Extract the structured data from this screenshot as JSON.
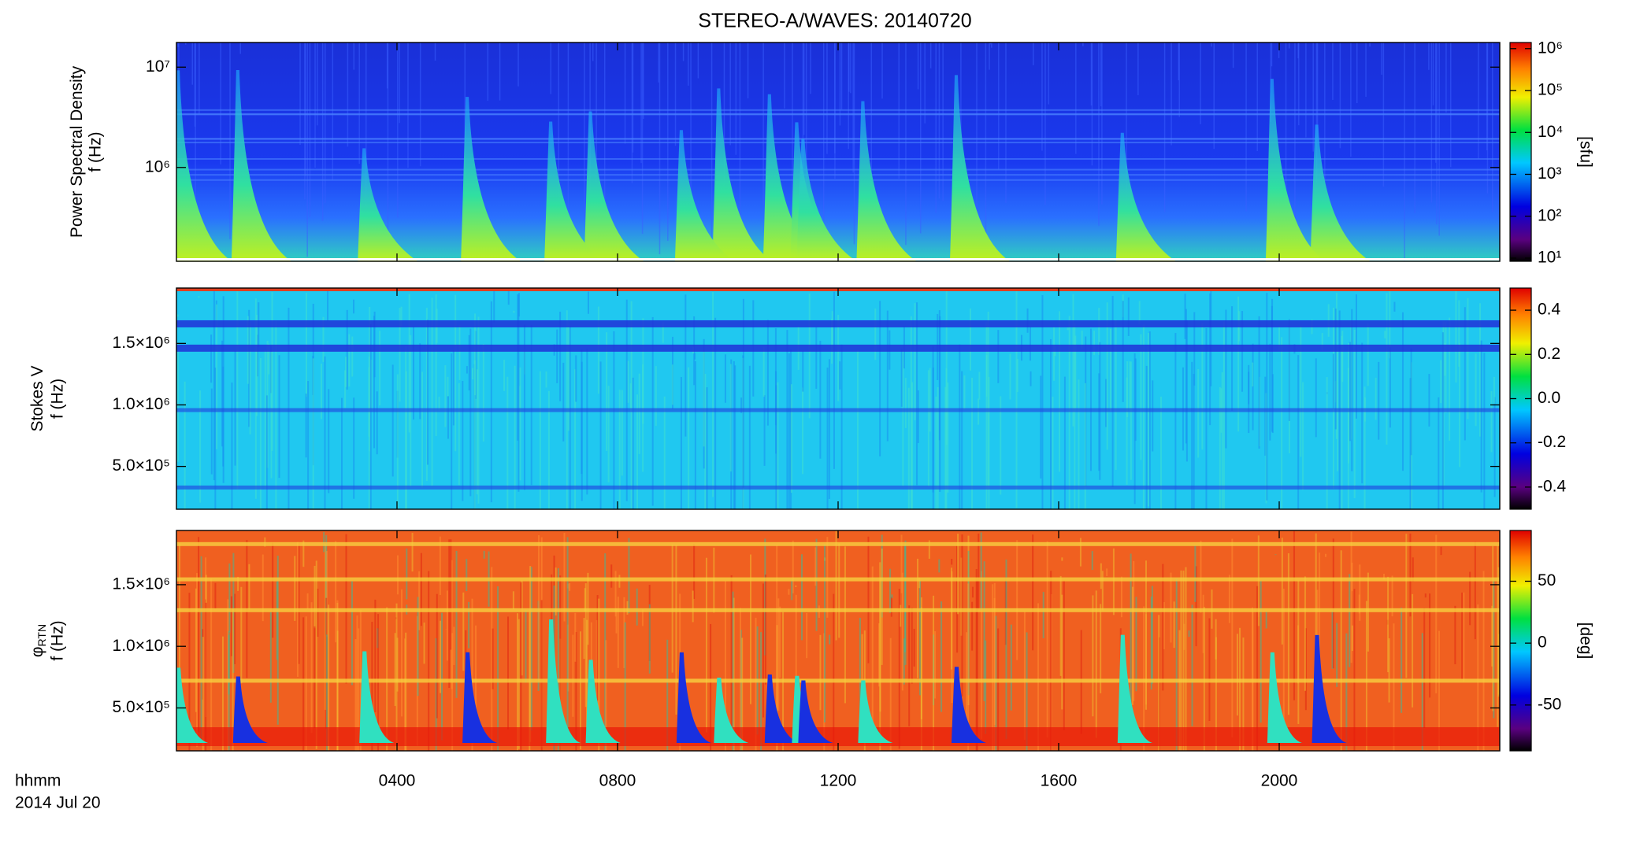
{
  "title": "STEREO-A/WAVES: 20140720",
  "chart_data": [
    {
      "type": "spectrogram",
      "ylabel": "Power Spectral Density",
      "ylabel2": "f (Hz)",
      "yscale": "log",
      "ylim": [
        116000,
        17600000
      ],
      "yticks": [
        {
          "value": 1000000,
          "label": "10⁶"
        },
        {
          "value": 10000000,
          "label": "10⁷"
        }
      ],
      "zscale": "log",
      "zlim": [
        8.4,
        1400000
      ],
      "zlabel": "[sfu]",
      "zticks": [
        {
          "value": 10,
          "label": "10¹"
        },
        {
          "value": 100,
          "label": "10²"
        },
        {
          "value": 1000,
          "label": "10³"
        },
        {
          "value": 10000,
          "label": "10⁴"
        },
        {
          "value": 100000,
          "label": "10⁵"
        },
        {
          "value": 1000000,
          "label": "10⁶"
        }
      ]
    },
    {
      "type": "spectrogram",
      "ylabel": "Stokes V",
      "ylabel2": "f (Hz)",
      "yscale": "linear",
      "ylim": [
        152000,
        1950000
      ],
      "yticks": [
        {
          "value": 500000,
          "label": "5.0×10⁵"
        },
        {
          "value": 1000000,
          "label": "1.0×10⁶"
        },
        {
          "value": 1500000,
          "label": "1.5×10⁶"
        }
      ],
      "zscale": "linear",
      "zlim": [
        -0.5,
        0.5
      ],
      "zticks": [
        {
          "value": -0.4,
          "label": "-0.4"
        },
        {
          "value": -0.2,
          "label": "-0.2"
        },
        {
          "value": 0,
          "label": "0.0"
        },
        0.2,
        0.4
      ]
    },
    {
      "type": "spectrogram",
      "ylabel": "φ",
      "ylabel_sub": "RTN",
      "ylabel2": "f (Hz)",
      "yscale": "linear",
      "ylim": [
        152000,
        1940000
      ],
      "yticks": [
        {
          "value": 500000,
          "label": "5.0×10⁵"
        },
        {
          "value": 1000000,
          "label": "1.0×10⁶"
        },
        {
          "value": 1500000,
          "label": "1.5×10⁶"
        }
      ],
      "zscale": "linear",
      "zlim": [
        -87,
        91
      ],
      "zlabel": "[deg]",
      "zticks": [
        {
          "value": -50,
          "label": "-50"
        },
        0,
        50
      ],
      "xlabel": "hhmm",
      "date": "2014 Jul 20",
      "xlim": [
        0,
        24
      ],
      "xticks": [
        {
          "value": 4,
          "label": "0400"
        },
        {
          "value": 8,
          "label": "0800"
        },
        {
          "value": 12,
          "label": "1200"
        },
        {
          "value": 16,
          "label": "1600"
        },
        {
          "value": 20,
          "label": "2000"
        }
      ]
    }
  ]
}
